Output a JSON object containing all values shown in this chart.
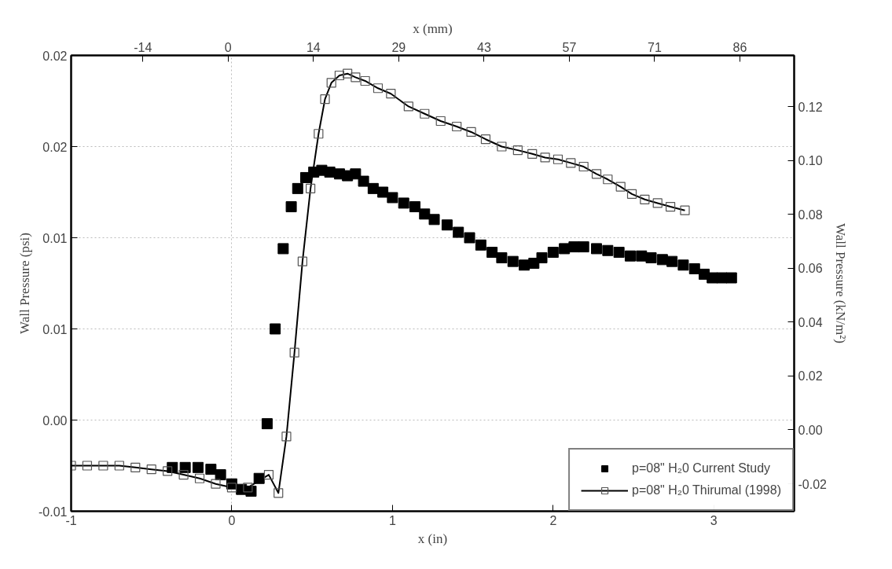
{
  "chart_data": {
    "type": "scatter",
    "xlabel": "x (in)",
    "x2label": "x (mm)",
    "ylabel": "Wall Pressure (psi)",
    "y2label": "Wall Pressure (kN/m²)",
    "xlim": [
      -1,
      3.5
    ],
    "xticks": [
      -1,
      0,
      1,
      2,
      3
    ],
    "x2lim": [
      -26.3,
      94.8
    ],
    "x2ticks": [
      {
        "value": -14.29,
        "label": "-14"
      },
      {
        "value": 0,
        "label": "0"
      },
      {
        "value": 14.29,
        "label": "14"
      },
      {
        "value": 28.57,
        "label": "29"
      },
      {
        "value": 42.86,
        "label": "43"
      },
      {
        "value": 57.14,
        "label": "57"
      },
      {
        "value": 71.43,
        "label": "71"
      },
      {
        "value": 85.71,
        "label": "86"
      }
    ],
    "ylim": [
      -0.005,
      0.02
    ],
    "yticks": [
      {
        "value": -0.005,
        "label": "-0.01"
      },
      {
        "value": 0,
        "label": "0.00"
      },
      {
        "value": 0.005,
        "label": "0.01"
      },
      {
        "value": 0.01,
        "label": "0.01"
      },
      {
        "value": 0.015,
        "label": "0.02"
      },
      {
        "value": 0.02,
        "label": "0.02"
      }
    ],
    "y2lim": [
      -0.0302,
      0.139
    ],
    "y2ticks": [
      {
        "value": -0.02,
        "label": "-0.02"
      },
      {
        "value": 0,
        "label": "0.00"
      },
      {
        "value": 0.02,
        "label": "0.02"
      },
      {
        "value": 0.04,
        "label": "0.04"
      },
      {
        "value": 0.06,
        "label": "0.06"
      },
      {
        "value": 0.08,
        "label": "0.08"
      },
      {
        "value": 0.1,
        "label": "0.10"
      },
      {
        "value": 0.12,
        "label": "0.12"
      }
    ],
    "grid": true,
    "legend": "bottom right",
    "marker": "square",
    "series": [
      {
        "name": "p=08\" H₂0 Current Study",
        "color": "#000000",
        "x": [
          -0.37,
          -0.29,
          -0.21,
          -0.13,
          -0.07,
          0.0,
          0.06,
          0.12,
          0.17,
          0.22,
          0.27,
          0.32,
          0.37,
          0.41,
          0.46,
          0.51,
          0.56,
          0.61,
          0.67,
          0.72,
          0.77,
          0.82,
          0.88,
          0.94,
          1.0,
          1.07,
          1.14,
          1.2,
          1.26,
          1.34,
          1.41,
          1.48,
          1.55,
          1.62,
          1.68,
          1.75,
          1.82,
          1.88,
          1.93,
          2.0,
          2.07,
          2.13,
          2.19,
          2.27,
          2.34,
          2.41,
          2.48,
          2.55,
          2.61,
          2.68,
          2.74,
          2.81,
          2.88,
          2.94,
          2.99,
          3.05,
          3.11
        ],
        "values": [
          -0.0026,
          -0.0026,
          -0.0026,
          -0.0027,
          -0.003,
          -0.0035,
          -0.0038,
          -0.0039,
          -0.0032,
          -0.0002,
          0.005,
          0.0094,
          0.0117,
          0.0127,
          0.0133,
          0.0136,
          0.0137,
          0.0136,
          0.0135,
          0.0134,
          0.0135,
          0.0131,
          0.0127,
          0.0125,
          0.0122,
          0.0119,
          0.0117,
          0.0113,
          0.011,
          0.0107,
          0.0103,
          0.01,
          0.0096,
          0.0092,
          0.0089,
          0.0087,
          0.0085,
          0.0086,
          0.0089,
          0.0092,
          0.0094,
          0.0095,
          0.0095,
          0.0094,
          0.0093,
          0.0092,
          0.009,
          0.009,
          0.0089,
          0.0088,
          0.0087,
          0.0085,
          0.0083,
          0.008,
          0.0078,
          0.0078,
          0.0078
        ]
      },
      {
        "name": "p=08\" H₂0 Thirumal (1998)",
        "color": "#000000",
        "type": "line",
        "line_style": "solid",
        "x": [
          -1.0,
          -0.9,
          -0.8,
          -0.7,
          -0.6,
          -0.5,
          -0.4,
          -0.3,
          -0.2,
          -0.1,
          0.0,
          0.1,
          0.23,
          0.29,
          0.34,
          0.39,
          0.44,
          0.49,
          0.54,
          0.58,
          0.62,
          0.67,
          0.72,
          0.77,
          0.83,
          0.91,
          0.99,
          1.1,
          1.2,
          1.3,
          1.4,
          1.49,
          1.58,
          1.68,
          1.78,
          1.87,
          1.95,
          2.03,
          2.11,
          2.19,
          2.27,
          2.34,
          2.42,
          2.49,
          2.57,
          2.65,
          2.73,
          2.82
        ],
        "values": [
          -0.0025,
          -0.0025,
          -0.0025,
          -0.0025,
          -0.0026,
          -0.0027,
          -0.0028,
          -0.003,
          -0.0032,
          -0.0035,
          -0.0037,
          -0.0037,
          -0.003,
          -0.004,
          -0.0009,
          0.0037,
          0.0087,
          0.0127,
          0.0157,
          0.0176,
          0.0185,
          0.0189,
          0.019,
          0.0188,
          0.0186,
          0.0182,
          0.0179,
          0.0172,
          0.0168,
          0.0164,
          0.0161,
          0.0158,
          0.0154,
          0.015,
          0.0148,
          0.0146,
          0.0144,
          0.0143,
          0.0141,
          0.0139,
          0.0135,
          0.0132,
          0.0128,
          0.0124,
          0.0121,
          0.0119,
          0.0117,
          0.0115
        ]
      }
    ]
  }
}
